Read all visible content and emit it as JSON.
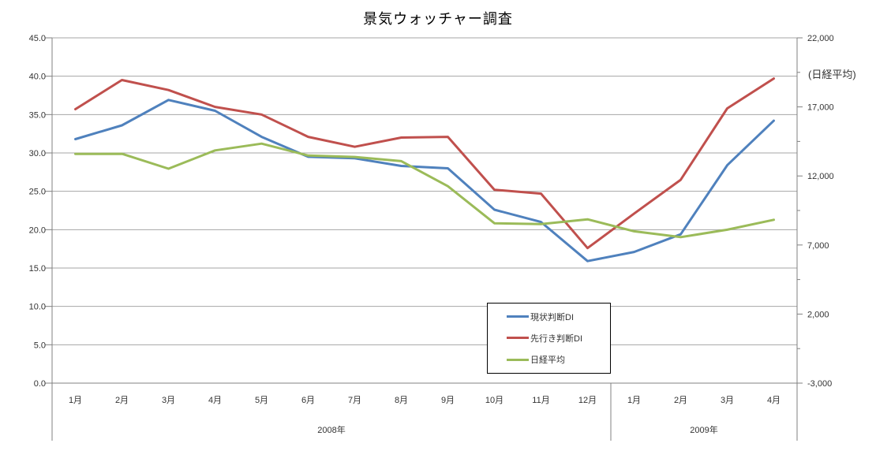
{
  "chart_data": {
    "type": "line",
    "title": "景気ウォッチャー調査",
    "x_categories": [
      "1月",
      "2月",
      "3月",
      "4月",
      "5月",
      "6月",
      "7月",
      "8月",
      "9月",
      "10月",
      "11月",
      "12月",
      "1月",
      "2月",
      "3月",
      "4月"
    ],
    "year_groups": [
      {
        "label": "2008年",
        "months": 12
      },
      {
        "label": "2009年",
        "months": 4
      }
    ],
    "y_left": {
      "min": 0,
      "max": 45,
      "step": 5,
      "tick_labels": [
        "0.0",
        "5.0",
        "10.0",
        "15.0",
        "20.0",
        "25.0",
        "30.0",
        "35.0",
        "40.0",
        "45.0"
      ]
    },
    "y_right": {
      "min": -3000,
      "max": 22000,
      "step": 5000,
      "label": "(日経平均)",
      "tick_labels": [
        "-3,000",
        "2,000",
        "7,000",
        "12,000",
        "17,000",
        "22,000"
      ]
    },
    "grid": true,
    "legend_position": "inside-bottom-center-box",
    "series": [
      {
        "name": "現状判断DI",
        "axis": "left",
        "color": "#4F81BD",
        "values": [
          31.8,
          33.6,
          36.9,
          35.5,
          32.1,
          29.5,
          29.3,
          28.3,
          28.0,
          22.6,
          21.0,
          15.9,
          17.1,
          19.4,
          28.4,
          34.2
        ]
      },
      {
        "name": "先行き判断DI",
        "axis": "left",
        "color": "#C0504D",
        "values": [
          35.7,
          39.5,
          38.2,
          36.0,
          35.0,
          32.1,
          30.8,
          32.0,
          32.1,
          25.2,
          24.7,
          17.6,
          22.1,
          26.5,
          35.8,
          39.7
        ]
      },
      {
        "name": "日経平均",
        "axis": "right",
        "color": "#9BBB59",
        "values": [
          13592,
          13603,
          12526,
          13850,
          14339,
          13481,
          13377,
          13073,
          11260,
          8577,
          8512,
          8860,
          7994,
          7568,
          8110,
          8828
        ]
      }
    ],
    "colors": {
      "axis_line": "#808080",
      "gridline": "#A6A6A6",
      "text": "#333333"
    }
  }
}
